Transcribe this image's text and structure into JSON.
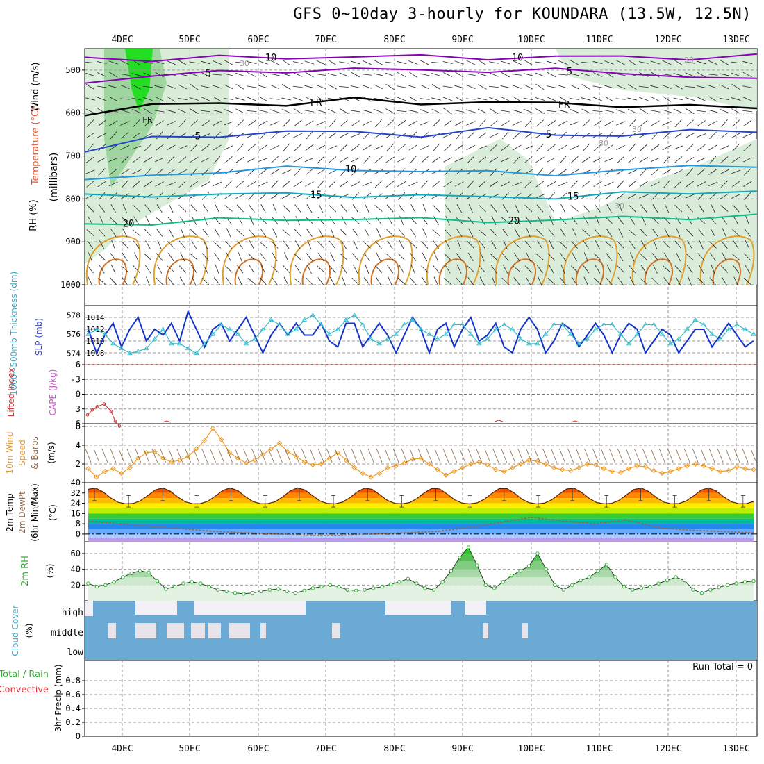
{
  "title": "GFS 0~10day 3-hourly for KOUNDARA (13.5W, 12.5N)",
  "dates": [
    "4DEC",
    "5DEC",
    "6DEC",
    "7DEC",
    "8DEC",
    "9DEC",
    "10DEC",
    "11DEC",
    "12DEC",
    "13DEC"
  ],
  "colors": {
    "wind_contour": "#8800bb",
    "freezing": "#000000",
    "temp_5": "#2244cc",
    "temp_10": "#2299dd",
    "temp_15": "#11aabb",
    "temp_20": "#11bb88",
    "cape": "#e0a030",
    "slp": "#1133cc",
    "thickness": "#33bbcc",
    "lifted_index": "#cc3333",
    "wind10": "#ee9922",
    "rh2m": "#33aa33",
    "cloud": "#6aaad5",
    "dewpoint": "#996644"
  },
  "labels": {
    "wind_axis": "Wind (m/s)",
    "temp_axis": "Temperature (°C)",
    "rh_axis": "RH (%)",
    "mb_axis": "(millibars)",
    "thickness_axis": "1000~500mb Thickness (dm)",
    "slp_axis": "SLP (mb)",
    "li_axis": "Lifted Index",
    "cape_axis": "CAPE (J/kg)",
    "wind10_a": "10m Wind",
    "wind10_b": "Speed",
    "wind10_c": "& Barbs",
    "wind10_unit": "(m/s)",
    "t2_a": "2m Temp",
    "t2_b": "2m DewPt",
    "t2_c": "(6hr Min/Max)",
    "t2_unit": "(°C)",
    "rh2_a": "2m RH",
    "rh2_unit": "(%)",
    "cloud_a": "Cloud Cover",
    "cloud_unit": "(%)",
    "cloud_high": "high",
    "cloud_mid": "middle",
    "cloud_low": "low",
    "precip_a": "Total / Rain",
    "precip_b": "Convective",
    "precip_axis": "3hr Precip (mm)",
    "run_total": "Run Total = 0",
    "fr": "FR"
  },
  "chart_data": [
    {
      "type": "line",
      "name": "upper_air",
      "ylim": [
        1000,
        450
      ],
      "yticks": [
        500,
        600,
        700,
        800,
        900,
        1000
      ],
      "contours": [
        {
          "label": "10",
          "kind": "wind",
          "values": [
            470,
            475,
            472,
            470,
            468,
            470,
            470,
            470,
            470,
            470,
            468
          ]
        },
        {
          "label": "5",
          "kind": "wind",
          "values": [
            525,
            515,
            505,
            500,
            500,
            500,
            500,
            502,
            505,
            515,
            525
          ]
        },
        {
          "label": "FR",
          "kind": "freezing",
          "values": [
            600,
            585,
            575,
            580,
            570,
            575,
            575,
            580,
            580,
            585,
            590
          ]
        },
        {
          "label": "5",
          "kind": "temp_5",
          "values": [
            690,
            660,
            650,
            645,
            645,
            650,
            640,
            650,
            650,
            645,
            640
          ]
        },
        {
          "label": "10",
          "kind": "temp_10",
          "values": [
            760,
            745,
            735,
            730,
            730,
            735,
            740,
            740,
            735,
            725,
            720
          ]
        },
        {
          "label": "15",
          "kind": "temp_15",
          "values": [
            795,
            790,
            790,
            790,
            790,
            795,
            795,
            795,
            790,
            785,
            780
          ]
        },
        {
          "label": "20",
          "kind": "temp_20",
          "values": [
            860,
            855,
            850,
            848,
            845,
            850,
            850,
            850,
            845,
            842,
            840
          ]
        }
      ],
      "annotations": [
        "30",
        "30",
        "30",
        "30",
        "30"
      ]
    },
    {
      "type": "line",
      "name": "slp_thickness",
      "slp_ylim": [
        1006,
        1016
      ],
      "slp_ticks": [
        1008,
        1010,
        1012,
        1014
      ],
      "thick_ylim": [
        572.8,
        579
      ],
      "thick_ticks": [
        574,
        576,
        578
      ],
      "slp": [
        1012,
        1008,
        1011,
        1013,
        1009,
        1012,
        1014,
        1010,
        1012,
        1011,
        1013,
        1010,
        1015,
        1012,
        1009,
        1012,
        1013,
        1010,
        1012,
        1014,
        1011,
        1008,
        1011,
        1013,
        1011,
        1013,
        1011,
        1011,
        1013,
        1010,
        1009,
        1013,
        1013,
        1009,
        1011,
        1013,
        1011,
        1008,
        1011,
        1014,
        1012,
        1008,
        1012,
        1013,
        1009,
        1012,
        1014,
        1010,
        1011,
        1013,
        1009,
        1008,
        1012,
        1014,
        1012,
        1008,
        1010,
        1013,
        1012,
        1009,
        1011,
        1013,
        1011,
        1008,
        1011,
        1013,
        1012,
        1008,
        1010,
        1012,
        1011,
        1008,
        1010,
        1012,
        1012,
        1009,
        1011,
        1013,
        1011,
        1009,
        1010
      ],
      "thickness": [
        576,
        576.5,
        576,
        575,
        574.5,
        574,
        574.2,
        574.5,
        575.5,
        576.5,
        575,
        575,
        574.5,
        574,
        575,
        576,
        577,
        576.5,
        576,
        575,
        575.5,
        576.5,
        577.5,
        577,
        576,
        576.5,
        577.5,
        578,
        577,
        576,
        576.5,
        577.5,
        578,
        577,
        575.5,
        575,
        575.5,
        576,
        577,
        577.5,
        576.5,
        576,
        575.5,
        576,
        577,
        577,
        576,
        575,
        575.5,
        576.5,
        577,
        576.5,
        575.5,
        575,
        575,
        576,
        577,
        577,
        576,
        575,
        575.5,
        576.5,
        577,
        577,
        576,
        575,
        576,
        577,
        577,
        576,
        575,
        575.5,
        576.5,
        577.5,
        577,
        576,
        575.5,
        576.5,
        577,
        576.5,
        576
      ]
    },
    {
      "type": "line",
      "name": "lifted_index",
      "ylim": [
        6,
        -6
      ],
      "ticks": [
        6,
        3,
        0,
        -3,
        -6
      ],
      "values": [
        4.2,
        3.2,
        2.5,
        2.0,
        3.5,
        5.5,
        6.5
      ]
    },
    {
      "type": "line",
      "name": "wind10",
      "ylim": [
        0,
        6
      ],
      "ticks": [
        2,
        4,
        6
      ],
      "values": [
        1.5,
        0.6,
        1.2,
        1.5,
        1.0,
        1.6,
        2.6,
        3.2,
        3.3,
        2.6,
        2.2,
        2.4,
        2.8,
        3.6,
        4.5,
        5.8,
        4.6,
        3.2,
        2.6,
        2.1,
        2.4,
        3.0,
        3.6,
        4.2,
        3.3,
        2.8,
        2.2,
        1.9,
        2.0,
        2.6,
        3.2,
        2.4,
        1.6,
        1.0,
        0.6,
        1.0,
        1.6,
        1.8,
        2.1,
        2.5,
        2.6,
        2.0,
        1.4,
        0.8,
        1.2,
        1.6,
        2.0,
        2.2,
        1.9,
        1.4,
        1.2,
        1.6,
        2.0,
        2.4,
        2.3,
        2.0,
        1.6,
        1.4,
        1.3,
        1.6,
        2.0,
        1.9,
        1.5,
        1.2,
        1.1,
        1.5,
        1.8,
        1.7,
        1.3,
        1.0,
        1.2,
        1.5,
        1.8,
        2.0,
        1.8,
        1.5,
        1.2,
        1.3,
        1.7,
        1.5,
        1.4
      ]
    },
    {
      "type": "area",
      "name": "temp2m",
      "ylim": [
        -6,
        40
      ],
      "ticks": [
        0,
        8,
        16,
        24,
        32,
        40
      ],
      "temp_max": [
        36,
        36,
        36,
        36,
        36,
        36,
        36,
        36,
        36,
        36
      ],
      "temp_min": [
        21,
        21,
        21,
        21,
        21,
        21,
        21,
        21,
        21,
        21
      ],
      "dewpoint": [
        10,
        8,
        6,
        4,
        2,
        1,
        0,
        -1,
        -1,
        0,
        1,
        2,
        5,
        9,
        13,
        10,
        8,
        11,
        5,
        3,
        2,
        1
      ]
    },
    {
      "type": "area",
      "name": "rh2m",
      "ylim": [
        0,
        75
      ],
      "ticks": [
        20,
        40,
        60
      ],
      "values": [
        22,
        18,
        20,
        24,
        30,
        35,
        38,
        36,
        25,
        15,
        18,
        22,
        24,
        22,
        18,
        14,
        12,
        10,
        9,
        10,
        12,
        14,
        15,
        12,
        10,
        13,
        16,
        18,
        20,
        18,
        14,
        13,
        14,
        16,
        18,
        21,
        24,
        28,
        22,
        16,
        14,
        24,
        38,
        55,
        68,
        45,
        20,
        16,
        24,
        32,
        38,
        44,
        60,
        40,
        20,
        14,
        20,
        26,
        30,
        38,
        46,
        30,
        18,
        14,
        16,
        18,
        22,
        26,
        30,
        26,
        14,
        10,
        14,
        17,
        20,
        22,
        24,
        25
      ]
    },
    {
      "type": "heatmap",
      "name": "cloud_cover",
      "rows": [
        "high",
        "middle",
        "low"
      ]
    },
    {
      "type": "bar",
      "name": "precip",
      "ylim": [
        0,
        1
      ],
      "ticks": [
        "0",
        "0.2",
        "0.4",
        "0.6",
        "0.8"
      ],
      "values": []
    }
  ]
}
